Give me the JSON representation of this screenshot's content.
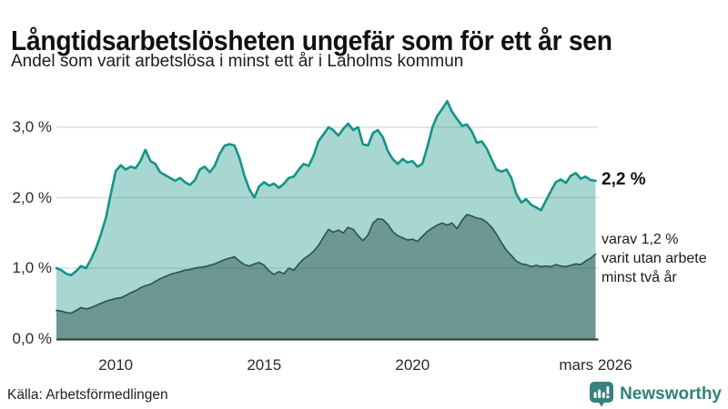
{
  "header": {
    "title": "Långtidsarbetslösheten ungefär som för ett år sen",
    "subtitle": "Andel som varit arbetslösa i minst ett år i Laholms kommun"
  },
  "footer": {
    "source": "Källa: Arbetsförmedlingen",
    "brand": "Newsworthy",
    "brand_color": "#2f827c",
    "brand_icon": "newsworthy-bubble-barchart-icon"
  },
  "colors": {
    "accent_teal": "#12948a",
    "light_area": "rgba(15,144,130,0.36)",
    "dark_line": "#33544e",
    "dark_area": "rgba(28,64,58,0.42)",
    "gridline": "#d8d8dd",
    "axis_line": "#3c3c3c"
  },
  "chart_data": {
    "type": "area",
    "title": "Långtidsarbetslösheten ungefär som för ett år sen",
    "subtitle": "Andel som varit arbetslösa i minst ett år i Laholms kommun",
    "grid": true,
    "legend": "none",
    "x_axis": {
      "range": [
        2008,
        2026.17
      ],
      "ticks": [
        {
          "label": "2010",
          "value": 2010
        },
        {
          "label": "2015",
          "value": 2015
        },
        {
          "label": "2020",
          "value": 2020
        },
        {
          "label": "mars 2026",
          "value": 2026.17
        }
      ]
    },
    "y_axis": {
      "unit": "%",
      "range": [
        0,
        3.5
      ],
      "ticks": [
        {
          "label": "3,0 %",
          "value": 3
        },
        {
          "label": "2,0 %",
          "value": 2
        },
        {
          "label": "1,0 %",
          "value": 1
        },
        {
          "label": "0,0 %",
          "value": 0
        }
      ]
    },
    "end_labels": {
      "total": "2,2 %",
      "subset": "varav 1,2 %\nvarit utan arbete\nminst två år"
    },
    "series": [
      {
        "id": "unemployed-one-year",
        "name": "Andel arbetslösa minst ett år",
        "color": "#12948a",
        "fill": "rgba(15,144,130,0.36)",
        "stroke_width": 2.6,
        "end_value": "2,2 %",
        "points": [
          [
            2008,
            1.0
          ],
          [
            2008.17,
            0.97
          ],
          [
            2008.33,
            0.92
          ],
          [
            2008.5,
            0.9
          ],
          [
            2008.67,
            0.96
          ],
          [
            2008.83,
            1.03
          ],
          [
            2009,
            1.0
          ],
          [
            2009.17,
            1.13
          ],
          [
            2009.33,
            1.28
          ],
          [
            2009.5,
            1.48
          ],
          [
            2009.67,
            1.72
          ],
          [
            2009.83,
            2.05
          ],
          [
            2010,
            2.38
          ],
          [
            2010.17,
            2.46
          ],
          [
            2010.33,
            2.4
          ],
          [
            2010.5,
            2.44
          ],
          [
            2010.67,
            2.42
          ],
          [
            2010.83,
            2.52
          ],
          [
            2011,
            2.68
          ],
          [
            2011.17,
            2.52
          ],
          [
            2011.33,
            2.48
          ],
          [
            2011.5,
            2.36
          ],
          [
            2011.67,
            2.32
          ],
          [
            2011.83,
            2.28
          ],
          [
            2012,
            2.24
          ],
          [
            2012.17,
            2.28
          ],
          [
            2012.33,
            2.22
          ],
          [
            2012.5,
            2.18
          ],
          [
            2012.67,
            2.25
          ],
          [
            2012.83,
            2.4
          ],
          [
            2013,
            2.44
          ],
          [
            2013.17,
            2.36
          ],
          [
            2013.33,
            2.45
          ],
          [
            2013.5,
            2.62
          ],
          [
            2013.67,
            2.74
          ],
          [
            2013.83,
            2.76
          ],
          [
            2014,
            2.74
          ],
          [
            2014.17,
            2.56
          ],
          [
            2014.33,
            2.32
          ],
          [
            2014.5,
            2.12
          ],
          [
            2014.67,
            2.0
          ],
          [
            2014.83,
            2.16
          ],
          [
            2015,
            2.22
          ],
          [
            2015.17,
            2.17
          ],
          [
            2015.33,
            2.2
          ],
          [
            2015.5,
            2.14
          ],
          [
            2015.67,
            2.2
          ],
          [
            2015.83,
            2.28
          ],
          [
            2016,
            2.3
          ],
          [
            2016.17,
            2.4
          ],
          [
            2016.33,
            2.48
          ],
          [
            2016.5,
            2.45
          ],
          [
            2016.67,
            2.6
          ],
          [
            2016.83,
            2.8
          ],
          [
            2017,
            2.9
          ],
          [
            2017.17,
            3.0
          ],
          [
            2017.33,
            2.96
          ],
          [
            2017.5,
            2.88
          ],
          [
            2017.67,
            2.98
          ],
          [
            2017.83,
            3.05
          ],
          [
            2018,
            2.96
          ],
          [
            2018.17,
            3.0
          ],
          [
            2018.33,
            2.76
          ],
          [
            2018.5,
            2.74
          ],
          [
            2018.67,
            2.92
          ],
          [
            2018.83,
            2.96
          ],
          [
            2019,
            2.86
          ],
          [
            2019.17,
            2.66
          ],
          [
            2019.33,
            2.55
          ],
          [
            2019.5,
            2.48
          ],
          [
            2019.67,
            2.55
          ],
          [
            2019.83,
            2.5
          ],
          [
            2020,
            2.52
          ],
          [
            2020.17,
            2.44
          ],
          [
            2020.33,
            2.48
          ],
          [
            2020.5,
            2.72
          ],
          [
            2020.67,
            3.0
          ],
          [
            2020.83,
            3.16
          ],
          [
            2021,
            3.26
          ],
          [
            2021.17,
            3.37
          ],
          [
            2021.33,
            3.22
          ],
          [
            2021.5,
            3.12
          ],
          [
            2021.67,
            3.02
          ],
          [
            2021.83,
            3.04
          ],
          [
            2022,
            2.94
          ],
          [
            2022.17,
            2.78
          ],
          [
            2022.33,
            2.8
          ],
          [
            2022.5,
            2.7
          ],
          [
            2022.67,
            2.54
          ],
          [
            2022.83,
            2.4
          ],
          [
            2023,
            2.37
          ],
          [
            2023.17,
            2.4
          ],
          [
            2023.33,
            2.28
          ],
          [
            2023.5,
            2.05
          ],
          [
            2023.67,
            1.93
          ],
          [
            2023.83,
            1.98
          ],
          [
            2024,
            1.9
          ],
          [
            2024.17,
            1.86
          ],
          [
            2024.33,
            1.82
          ],
          [
            2024.5,
            1.96
          ],
          [
            2024.67,
            2.1
          ],
          [
            2024.83,
            2.22
          ],
          [
            2025,
            2.26
          ],
          [
            2025.17,
            2.21
          ],
          [
            2025.33,
            2.31
          ],
          [
            2025.5,
            2.35
          ],
          [
            2025.67,
            2.27
          ],
          [
            2025.83,
            2.3
          ],
          [
            2026,
            2.25
          ],
          [
            2026.17,
            2.24
          ]
        ]
      },
      {
        "id": "unemployed-two-years",
        "name": "varav utan arbete minst två år",
        "color": "#33544e",
        "fill": "rgba(28,64,58,0.42)",
        "stroke_width": 1.7,
        "end_value": "1,2 %",
        "points": [
          [
            2008,
            0.4
          ],
          [
            2008.17,
            0.39
          ],
          [
            2008.33,
            0.37
          ],
          [
            2008.5,
            0.36
          ],
          [
            2008.67,
            0.4
          ],
          [
            2008.83,
            0.44
          ],
          [
            2009,
            0.42
          ],
          [
            2009.17,
            0.44
          ],
          [
            2009.33,
            0.47
          ],
          [
            2009.5,
            0.5
          ],
          [
            2009.67,
            0.53
          ],
          [
            2009.83,
            0.55
          ],
          [
            2010,
            0.57
          ],
          [
            2010.17,
            0.58
          ],
          [
            2010.33,
            0.61
          ],
          [
            2010.5,
            0.65
          ],
          [
            2010.67,
            0.68
          ],
          [
            2010.83,
            0.72
          ],
          [
            2011,
            0.75
          ],
          [
            2011.17,
            0.77
          ],
          [
            2011.33,
            0.81
          ],
          [
            2011.5,
            0.85
          ],
          [
            2011.67,
            0.88
          ],
          [
            2011.83,
            0.91
          ],
          [
            2012,
            0.93
          ],
          [
            2012.17,
            0.95
          ],
          [
            2012.33,
            0.97
          ],
          [
            2012.5,
            0.98
          ],
          [
            2012.67,
            1.0
          ],
          [
            2012.83,
            1.01
          ],
          [
            2013,
            1.02
          ],
          [
            2013.17,
            1.04
          ],
          [
            2013.33,
            1.06
          ],
          [
            2013.5,
            1.09
          ],
          [
            2013.67,
            1.12
          ],
          [
            2013.83,
            1.14
          ],
          [
            2014,
            1.16
          ],
          [
            2014.17,
            1.1
          ],
          [
            2014.33,
            1.05
          ],
          [
            2014.5,
            1.03
          ],
          [
            2014.67,
            1.06
          ],
          [
            2014.83,
            1.08
          ],
          [
            2015,
            1.04
          ],
          [
            2015.17,
            0.96
          ],
          [
            2015.33,
            0.91
          ],
          [
            2015.5,
            0.95
          ],
          [
            2015.67,
            0.92
          ],
          [
            2015.83,
            1.0
          ],
          [
            2016,
            0.97
          ],
          [
            2016.17,
            1.06
          ],
          [
            2016.33,
            1.13
          ],
          [
            2016.5,
            1.18
          ],
          [
            2016.67,
            1.24
          ],
          [
            2016.83,
            1.32
          ],
          [
            2017,
            1.44
          ],
          [
            2017.17,
            1.55
          ],
          [
            2017.33,
            1.51
          ],
          [
            2017.5,
            1.54
          ],
          [
            2017.67,
            1.5
          ],
          [
            2017.83,
            1.58
          ],
          [
            2018,
            1.55
          ],
          [
            2018.17,
            1.46
          ],
          [
            2018.33,
            1.39
          ],
          [
            2018.5,
            1.47
          ],
          [
            2018.67,
            1.64
          ],
          [
            2018.83,
            1.7
          ],
          [
            2019,
            1.69
          ],
          [
            2019.17,
            1.62
          ],
          [
            2019.33,
            1.52
          ],
          [
            2019.5,
            1.46
          ],
          [
            2019.67,
            1.43
          ],
          [
            2019.83,
            1.4
          ],
          [
            2020,
            1.41
          ],
          [
            2020.17,
            1.38
          ],
          [
            2020.33,
            1.45
          ],
          [
            2020.5,
            1.52
          ],
          [
            2020.67,
            1.57
          ],
          [
            2020.83,
            1.61
          ],
          [
            2021,
            1.64
          ],
          [
            2021.17,
            1.61
          ],
          [
            2021.33,
            1.64
          ],
          [
            2021.5,
            1.56
          ],
          [
            2021.67,
            1.68
          ],
          [
            2021.83,
            1.76
          ],
          [
            2022,
            1.74
          ],
          [
            2022.17,
            1.71
          ],
          [
            2022.33,
            1.7
          ],
          [
            2022.5,
            1.65
          ],
          [
            2022.67,
            1.58
          ],
          [
            2022.83,
            1.48
          ],
          [
            2023,
            1.36
          ],
          [
            2023.17,
            1.25
          ],
          [
            2023.33,
            1.18
          ],
          [
            2023.5,
            1.1
          ],
          [
            2023.67,
            1.06
          ],
          [
            2023.83,
            1.05
          ],
          [
            2024,
            1.02
          ],
          [
            2024.17,
            1.04
          ],
          [
            2024.33,
            1.02
          ],
          [
            2024.5,
            1.03
          ],
          [
            2024.67,
            1.02
          ],
          [
            2024.83,
            1.05
          ],
          [
            2025,
            1.03
          ],
          [
            2025.17,
            1.02
          ],
          [
            2025.33,
            1.04
          ],
          [
            2025.5,
            1.06
          ],
          [
            2025.67,
            1.05
          ],
          [
            2025.83,
            1.1
          ],
          [
            2026,
            1.14
          ],
          [
            2026.17,
            1.2
          ]
        ]
      }
    ]
  }
}
